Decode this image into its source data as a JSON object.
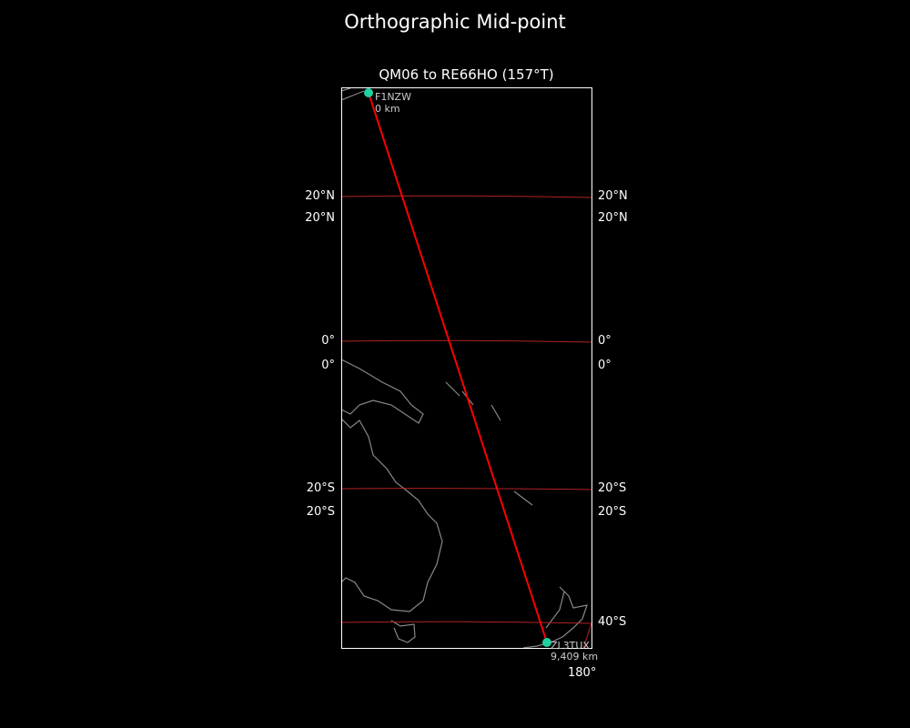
{
  "title": "Orthographic Mid-point",
  "subtitle": "QM06 to RE66HO (157°T)",
  "colors": {
    "background": "#000000",
    "path": "#ff0000",
    "gridline": "#b22222",
    "coastline": "#888888",
    "station": "#1fd1a0",
    "frame": "#ffffff"
  },
  "lat_labels_left": [
    "20°N",
    "20°N",
    "0°",
    "0°",
    "20°S",
    "20°S"
  ],
  "lat_labels_right": [
    "20°N",
    "20°N",
    "0°",
    "0°",
    "20°S",
    "20°S",
    "40°S"
  ],
  "lon_labels": [
    "180°"
  ],
  "start": {
    "call": "F1NZW",
    "distance": "0 km"
  },
  "end": {
    "call": "ZL3TUX",
    "distance": "9,409 km"
  }
}
